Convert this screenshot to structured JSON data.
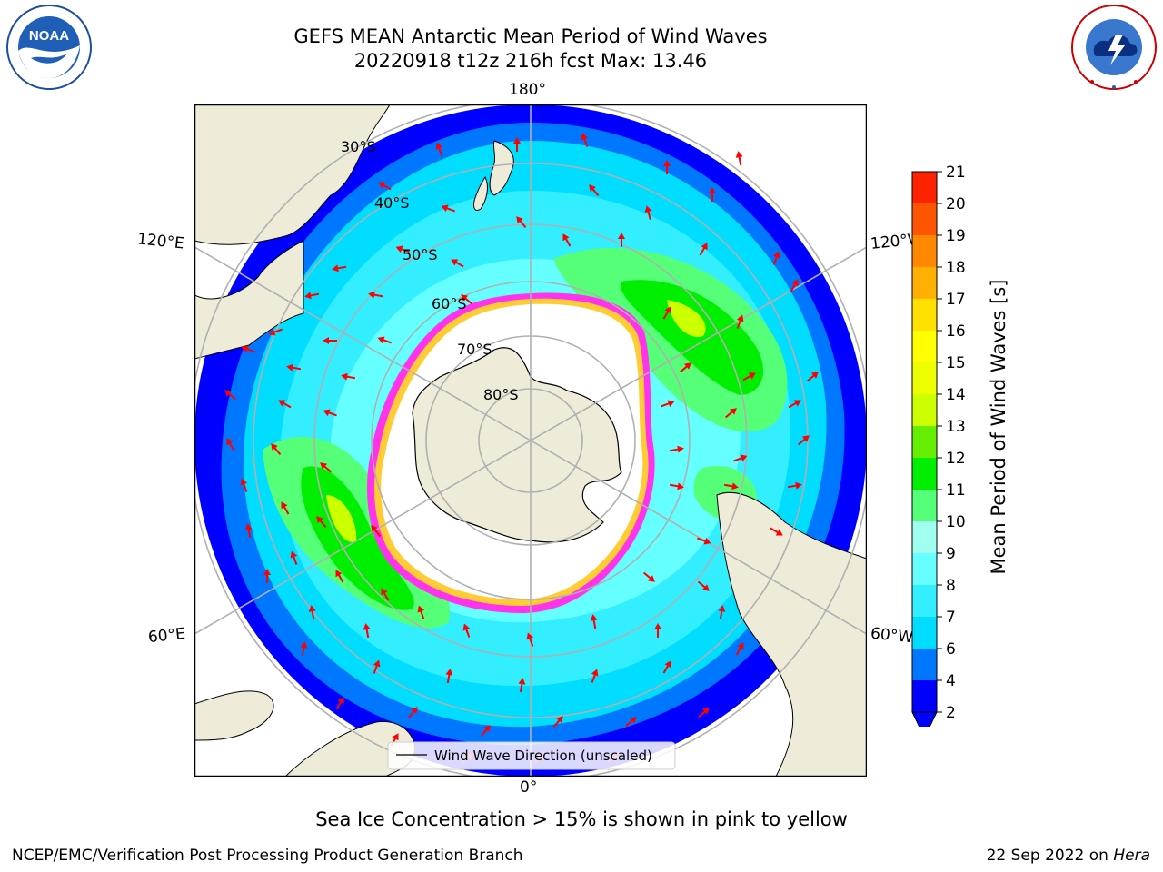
{
  "header": {
    "title": "GEFS MEAN Antarctic Mean Period of Wind Waves",
    "subtitle": "20220918 t12z 216h fcst   Max: 13.46"
  },
  "logos": {
    "left": {
      "name": "noaa-logo",
      "text": "NOAA",
      "ring_text": "NATIONAL OCEANIC AND ATMOSPHERIC ADMINISTRATION · U.S. DEPARTMENT OF COMMERCE"
    },
    "right": {
      "name": "nws-logo",
      "ring_text": "NATIONAL WEATHER SERVICE"
    }
  },
  "map": {
    "projection": "south-polar-stereographic",
    "meridian_labels": {
      "top": "180°",
      "bottom": "0°",
      "upper_left": "120°E",
      "lower_left": "60°E",
      "upper_right": "120°W",
      "lower_right": "60°W"
    },
    "latitude_labels": [
      "30°S",
      "40°S",
      "50°S",
      "60°S",
      "70°S",
      "80°S"
    ],
    "legend_label": "Wind Wave Direction (unscaled)",
    "colors": {
      "land": "#efebd9",
      "ice": "#ffffff",
      "ice_edge": "#ff33ee",
      "ice_edge_inner": "#ffcc33",
      "arrow": "#ff0000",
      "grid": "#b0b0b0"
    }
  },
  "colorbar": {
    "label": "Mean Period of Wind Waves [s]",
    "ticks": [
      "2",
      "4",
      "6",
      "7",
      "8",
      "9",
      "10",
      "11",
      "12",
      "13",
      "14",
      "15",
      "16",
      "17",
      "18",
      "19",
      "20",
      "21"
    ],
    "colors": [
      "#0000ff",
      "#0077ff",
      "#00ddff",
      "#33eeff",
      "#66ffff",
      "#a0ffee",
      "#55ff77",
      "#00ee00",
      "#66ee00",
      "#ccff00",
      "#eeff00",
      "#ffff00",
      "#ffe000",
      "#ffb000",
      "#ff8800",
      "#ff5500",
      "#ff2200"
    ],
    "extend_min_color": "#0000ff"
  },
  "footer": {
    "note": "Sea Ice Concentration > 15% is shown in pink to yellow",
    "left": "NCEP/EMC/Verification Post Processing Product Generation Branch",
    "right_date": "22 Sep 2022 on ",
    "right_machine": "Hera"
  }
}
